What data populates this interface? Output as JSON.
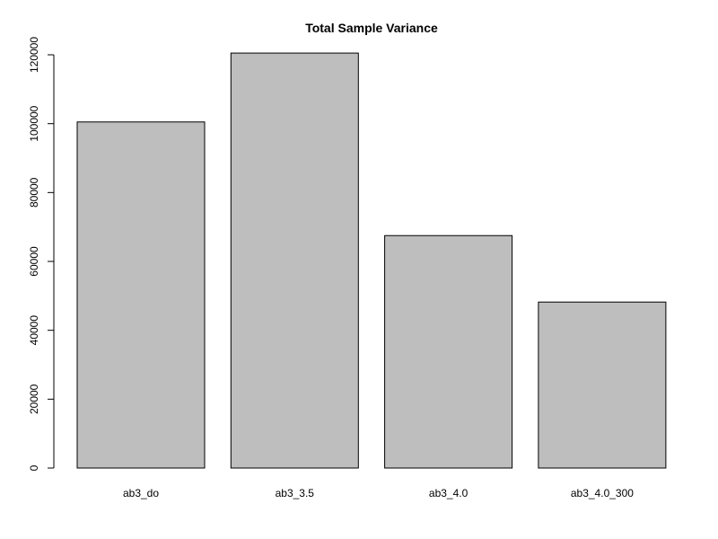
{
  "chart_data": {
    "type": "bar",
    "title": "Total Sample Variance",
    "xlabel": "",
    "ylabel": "",
    "categories": [
      "ab3_do",
      "ab3_3.5",
      "ab3_4.0",
      "ab3_4.0_300"
    ],
    "values": [
      100500,
      120500,
      67500,
      48200
    ],
    "ylim": [
      0,
      120000
    ],
    "yticks": [
      "0",
      "20000",
      "40000",
      "60000",
      "80000",
      "100000",
      "120000"
    ],
    "ytick_values": [
      0,
      20000,
      40000,
      60000,
      80000,
      100000,
      120000
    ],
    "bar_color": "#bebebe",
    "grid": false
  }
}
